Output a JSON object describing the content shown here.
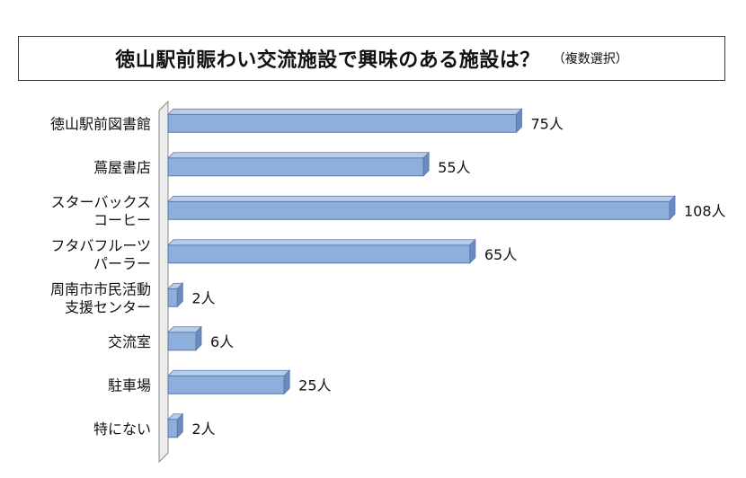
{
  "chart_data": {
    "type": "bar",
    "orientation": "horizontal",
    "title": "徳山駅前賑わい交流施設で興味のある施設は？",
    "subtitle": "（複数選択）",
    "categories": [
      [
        "徳山駅前図書館"
      ],
      [
        "蔦屋書店"
      ],
      [
        "スターバックス",
        "コーヒー"
      ],
      [
        "フタバフルーツ",
        "パーラー"
      ],
      [
        "周南市市民活動",
        "支援センター"
      ],
      [
        "交流室"
      ],
      [
        "駐車場"
      ],
      [
        "特にない"
      ]
    ],
    "values": [
      75,
      55,
      108,
      65,
      2,
      6,
      25,
      2
    ],
    "value_labels": [
      "75人",
      "55人",
      "108人",
      "65人",
      "2人",
      "6人",
      "25人",
      "2人"
    ],
    "xlim": [
      0,
      108
    ],
    "grid": false,
    "colors": {
      "bar": "#8eaedb",
      "bar_edge": "#5577aa",
      "bar_shade": "#6a8bbf",
      "axis_wall": "#ececec"
    }
  }
}
